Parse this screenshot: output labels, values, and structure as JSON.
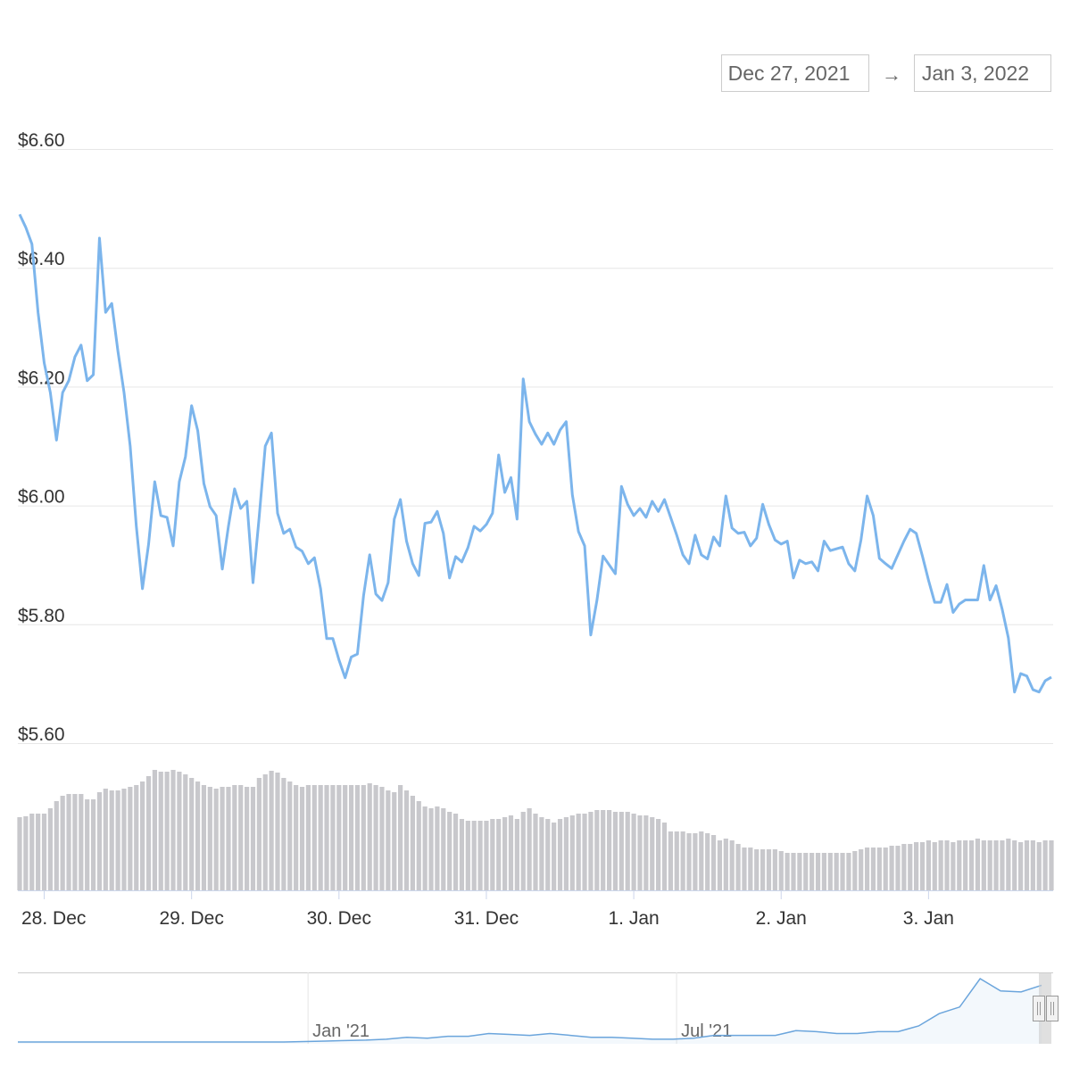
{
  "chart_data": {
    "type": "line",
    "color": "#7cb5ec",
    "volume_color": "#c8c8cc",
    "grid": true,
    "range_selector": {
      "from": "Dec 27, 2021",
      "arrow": "→",
      "to": "Jan 3, 2022"
    },
    "ylim": [
      5.6,
      6.6
    ],
    "yticks": [
      {
        "value": 5.6,
        "label": "$5.60"
      },
      {
        "value": 5.8,
        "label": "$5.80"
      },
      {
        "value": 6.0,
        "label": "$6.00"
      },
      {
        "value": 6.2,
        "label": "$6.20"
      },
      {
        "value": 6.4,
        "label": "$6.40"
      },
      {
        "value": 6.6,
        "label": "$6.60"
      }
    ],
    "categories": [
      null,
      null,
      null,
      null,
      "28. Dec",
      null,
      null,
      null,
      null,
      null,
      null,
      null,
      null,
      null,
      null,
      null,
      null,
      null,
      null,
      null,
      null,
      null,
      null,
      null,
      null,
      null,
      null,
      null,
      "29. Dec",
      null,
      null,
      null,
      null,
      null,
      null,
      null,
      null,
      null,
      null,
      null,
      null,
      null,
      null,
      null,
      null,
      null,
      null,
      null,
      null,
      null,
      null,
      null,
      "30. Dec",
      null,
      null,
      null,
      null,
      null,
      null,
      null,
      null,
      null,
      null,
      null,
      null,
      null,
      null,
      null,
      null,
      null,
      null,
      null,
      null,
      null,
      null,
      null,
      "31. Dec",
      null,
      null,
      null,
      null,
      null,
      null,
      null,
      null,
      null,
      null,
      null,
      null,
      null,
      null,
      null,
      null,
      null,
      null,
      null,
      null,
      null,
      null,
      null,
      "1. Jan",
      null,
      null,
      null,
      null,
      null,
      null,
      null,
      null,
      null,
      null,
      null,
      null,
      null,
      null,
      null,
      null,
      null,
      null,
      null,
      null,
      null,
      null,
      null,
      "2. Jan",
      null,
      null,
      null,
      null,
      null,
      null,
      null,
      null,
      null,
      null,
      null,
      null,
      null,
      null,
      null,
      null,
      null,
      null,
      null,
      null,
      null,
      null,
      null,
      "3. Jan",
      null,
      null,
      null,
      null,
      null,
      null,
      null,
      null,
      null,
      null,
      null,
      null,
      null,
      null,
      null,
      null,
      null,
      null,
      null,
      null
    ],
    "values": [
      6.49,
      6.468,
      6.44,
      6.325,
      6.24,
      6.19,
      6.11,
      6.19,
      6.21,
      6.25,
      6.27,
      6.21,
      6.22,
      6.45,
      6.325,
      6.34,
      6.26,
      6.19,
      6.1,
      5.965,
      5.86,
      5.935,
      6.04,
      5.983,
      5.98,
      5.932,
      6.04,
      6.082,
      6.168,
      6.126,
      6.037,
      5.998,
      5.983,
      5.893,
      5.965,
      6.028,
      5.995,
      6.007,
      5.87,
      5.98,
      6.1,
      6.122,
      5.987,
      5.953,
      5.96,
      5.93,
      5.923,
      5.902,
      5.912,
      5.86,
      5.776,
      5.776,
      5.74,
      5.71,
      5.745,
      5.75,
      5.848,
      5.917,
      5.851,
      5.84,
      5.87,
      5.977,
      6.01,
      5.94,
      5.902,
      5.882,
      5.97,
      5.972,
      5.99,
      5.953,
      5.878,
      5.914,
      5.905,
      5.929,
      5.965,
      5.957,
      5.968,
      5.987,
      6.085,
      6.022,
      6.047,
      5.977,
      6.213,
      6.141,
      6.12,
      6.103,
      6.122,
      6.103,
      6.127,
      6.141,
      6.018,
      5.956,
      5.932,
      5.782,
      5.84,
      5.915,
      5.9,
      5.885,
      6.032,
      6.002,
      5.983,
      5.995,
      5.98,
      6.007,
      5.99,
      6.01,
      5.98,
      5.95,
      5.917,
      5.902,
      5.95,
      5.917,
      5.91,
      5.947,
      5.932,
      6.016,
      5.962,
      5.953,
      5.955,
      5.932,
      5.945,
      6.002,
      5.968,
      5.942,
      5.935,
      5.94,
      5.878,
      5.908,
      5.902,
      5.905,
      5.89,
      5.94,
      5.924,
      5.927,
      5.93,
      5.902,
      5.89,
      5.942,
      6.016,
      5.983,
      5.911,
      5.902,
      5.894,
      5.917,
      5.94,
      5.96,
      5.953,
      5.915,
      5.874,
      5.837,
      5.837,
      5.867,
      5.82,
      5.834,
      5.841,
      5.841,
      5.841,
      5.899,
      5.841,
      5.865,
      5.825,
      5.777,
      5.686,
      5.717,
      5.713,
      5.69,
      5.686,
      5.705,
      5.711
    ],
    "volume": [
      82,
      83,
      86,
      86,
      86,
      92,
      100,
      106,
      108,
      108,
      108,
      102,
      102,
      110,
      114,
      112,
      112,
      114,
      116,
      118,
      122,
      128,
      135,
      133,
      133,
      135,
      133,
      130,
      126,
      122,
      118,
      116,
      114,
      116,
      116,
      118,
      118,
      116,
      116,
      126,
      130,
      134,
      132,
      126,
      122,
      118,
      116,
      118,
      118,
      118,
      118,
      118,
      118,
      118,
      118,
      118,
      118,
      120,
      118,
      116,
      112,
      110,
      118,
      112,
      106,
      100,
      94,
      92,
      94,
      92,
      88,
      86,
      80,
      78,
      78,
      78,
      78,
      80,
      80,
      82,
      84,
      80,
      88,
      92,
      86,
      82,
      80,
      76,
      80,
      82,
      84,
      86,
      86,
      88,
      90,
      90,
      90,
      88,
      88,
      88,
      86,
      84,
      84,
      82,
      80,
      76,
      66,
      66,
      66,
      64,
      64,
      66,
      64,
      62,
      56,
      58,
      56,
      52,
      48,
      48,
      46,
      46,
      46,
      46,
      44,
      42,
      42,
      42,
      42,
      42,
      42,
      42,
      42,
      42,
      42,
      42,
      44,
      46,
      48,
      48,
      48,
      48,
      50,
      50,
      52,
      52,
      54,
      54,
      56,
      54,
      56,
      56,
      54,
      56,
      56,
      56,
      58,
      56,
      56,
      56,
      56,
      58,
      56,
      54,
      56,
      56,
      54,
      56,
      56
    ],
    "navigator": {
      "color": "#6ba5dc",
      "categories": [
        null,
        null,
        null,
        null,
        null,
        null,
        null,
        null,
        null,
        null,
        null,
        null,
        null,
        null,
        "Jan '21",
        null,
        null,
        null,
        null,
        null,
        null,
        null,
        null,
        null,
        null,
        null,
        null,
        null,
        null,
        null,
        null,
        null,
        "Jul '21",
        null,
        null,
        null,
        null,
        null,
        null,
        null,
        null,
        null,
        null,
        null,
        null,
        null,
        null,
        null,
        null,
        null,
        null
      ],
      "values": [
        0.3,
        0.3,
        0.3,
        0.3,
        0.3,
        0.3,
        0.3,
        0.3,
        0.3,
        0.3,
        0.3,
        0.3,
        0.3,
        0.3,
        0.35,
        0.4,
        0.45,
        0.5,
        0.6,
        0.8,
        0.7,
        0.9,
        0.9,
        1.2,
        1.1,
        1.0,
        1.2,
        1.0,
        0.8,
        0.8,
        0.7,
        0.6,
        0.6,
        0.7,
        1.0,
        1.0,
        1.0,
        1.0,
        1.5,
        1.4,
        1.2,
        1.2,
        1.4,
        1.4,
        2.0,
        3.3,
        4.0,
        7.0,
        5.7,
        5.6,
        6.3
      ]
    }
  }
}
